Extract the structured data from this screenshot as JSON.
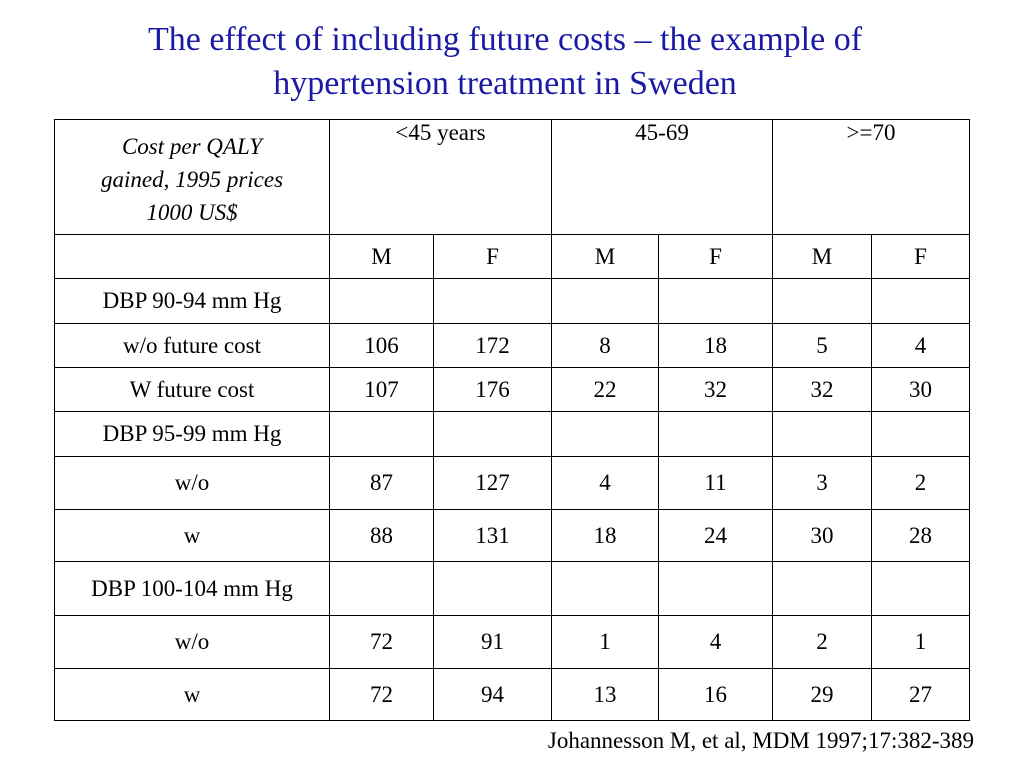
{
  "title": {
    "line1": "The effect of including future costs – the example of",
    "line2": "hypertension treatment in Sweden"
  },
  "table": {
    "corner_header": {
      "line1": "Cost per QALY",
      "line2": "gained, 1995 prices",
      "line3": "1000 US$"
    },
    "age_groups": [
      "<45 years",
      "45-69",
      ">=70"
    ],
    "sexes": [
      "M",
      "F",
      "M",
      "F",
      "M",
      "F"
    ],
    "rows": [
      {
        "label": "DBP 90-94 mm Hg",
        "values": [
          "",
          "",
          "",
          "",
          "",
          ""
        ]
      },
      {
        "label": "w/o future cost",
        "values": [
          "106",
          "172",
          "8",
          "18",
          "5",
          "4"
        ]
      },
      {
        "label": "W future cost",
        "values": [
          "107",
          "176",
          "22",
          "32",
          "32",
          "30"
        ]
      },
      {
        "label": "DBP 95-99 mm Hg",
        "values": [
          "",
          "",
          "",
          "",
          "",
          ""
        ]
      },
      {
        "label": "w/o",
        "values": [
          "87",
          "127",
          "4",
          "11",
          "3",
          "2"
        ]
      },
      {
        "label": "w",
        "values": [
          "88",
          "131",
          "18",
          "24",
          "30",
          "28"
        ]
      },
      {
        "label": "DBP 100-104 mm Hg",
        "values": [
          "",
          "",
          "",
          "",
          "",
          ""
        ]
      },
      {
        "label": "w/o",
        "values": [
          "72",
          "91",
          "1",
          "4",
          "2",
          "1"
        ]
      },
      {
        "label": "w",
        "values": [
          "72",
          "94",
          "13",
          "16",
          "29",
          "27"
        ]
      }
    ]
  },
  "citation": "Johannesson M, et al, MDM 1997;17:382-389",
  "colors": {
    "title": "#1a1aa6",
    "text": "#000000",
    "background": "#ffffff"
  }
}
